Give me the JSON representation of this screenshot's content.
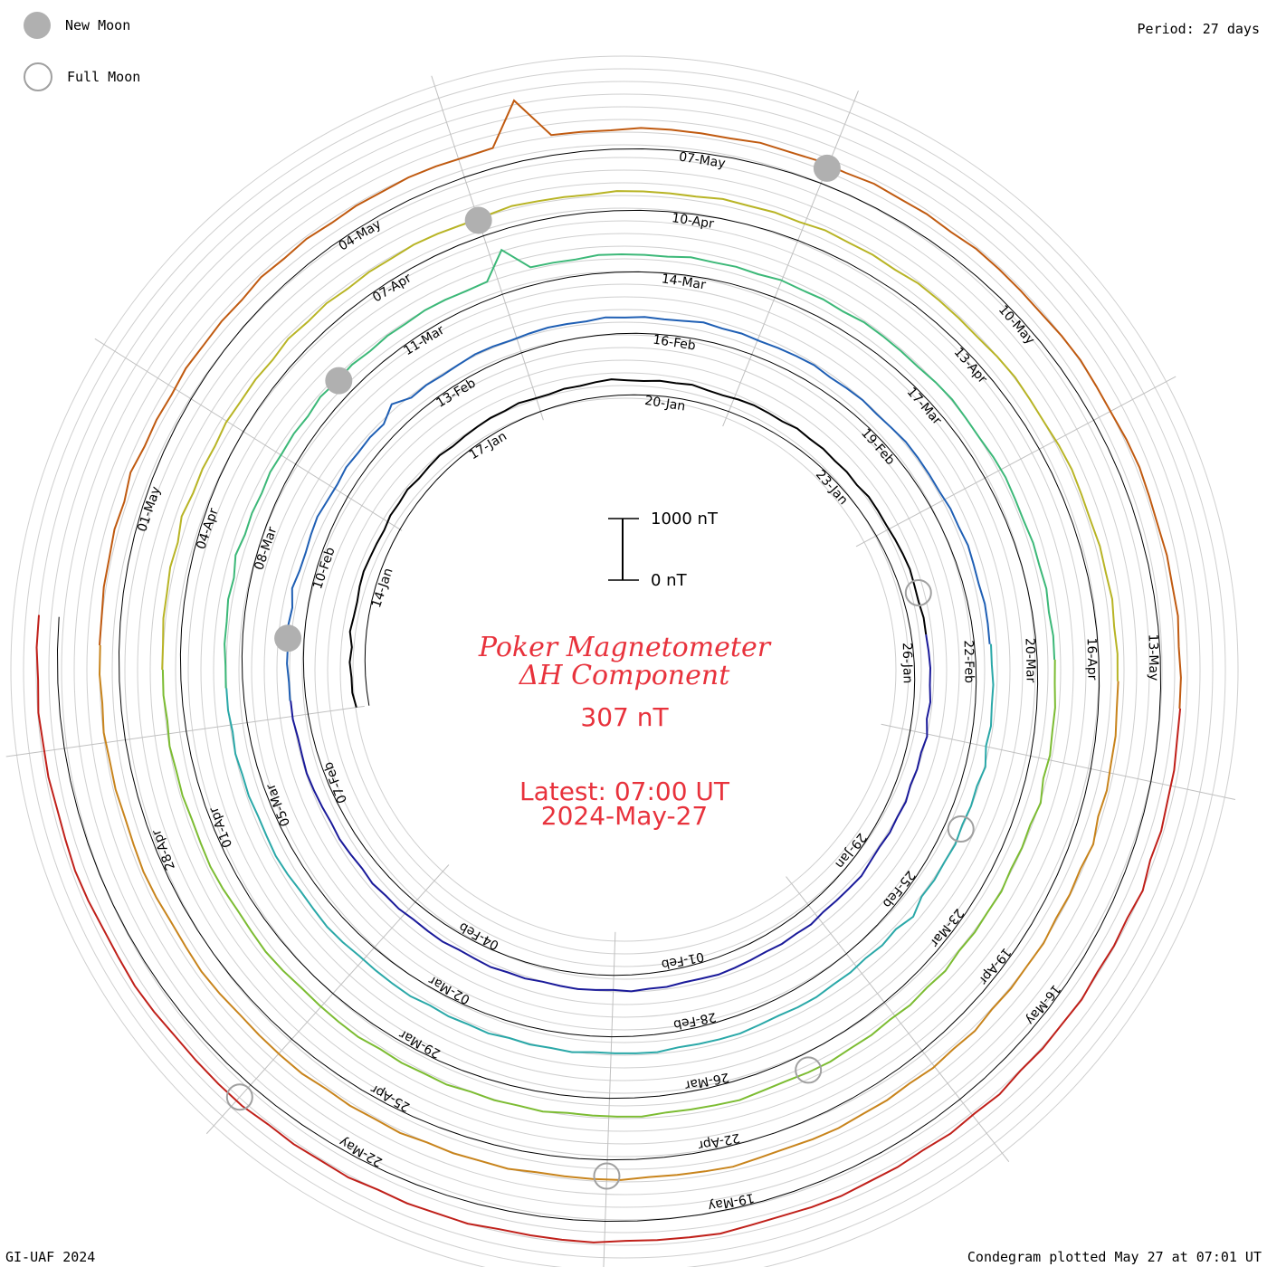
{
  "legend": {
    "new_moon_label": "New Moon",
    "full_moon_label": "Full Moon",
    "new_moon_color": "#b0b0b0",
    "full_moon_color": "#a0a0a0"
  },
  "period_text": "Period: 27 days",
  "credit_text": "GI-UAF 2024",
  "plotted_text": "Condegram plotted May 27 at 07:01 UT",
  "scale": {
    "top_label": "1000 nT",
    "bottom_label": "0 nT"
  },
  "title": {
    "line1": "Poker Magnetometer",
    "line2": "ΔH Component",
    "current_value": "307 nT",
    "latest_line1": "Latest: 07:00 UT",
    "latest_line2": "2024-May-27"
  },
  "accent_color": "#e8323c",
  "chart_data": {
    "type": "line",
    "title": "Poker Magnetometer ΔH Component",
    "current_value_nT": 307,
    "period_days": 27,
    "start_date": "2024-01-12",
    "end_date": "2024-05-27T07:00",
    "direction": "clockwise",
    "scale_bar_nT": [
      0,
      1000
    ],
    "grid": true,
    "series": [
      {
        "color": "#000000",
        "values": [
          120,
          150,
          140,
          160,
          130,
          180,
          150,
          140,
          160,
          170,
          150,
          140,
          130,
          160,
          150,
          170,
          140,
          150,
          160,
          130,
          140,
          150,
          160,
          150,
          170,
          140,
          130,
          150,
          140,
          160,
          180,
          150,
          140,
          160,
          150,
          170,
          140,
          130,
          150,
          160,
          150,
          140,
          170,
          150,
          160,
          140,
          150,
          130,
          160,
          150,
          140,
          150,
          160,
          170,
          150,
          140,
          160,
          150
        ]
      },
      {
        "color": "#1a1a9a",
        "values": [
          150,
          160,
          170,
          160,
          180,
          150,
          200,
          160,
          170,
          150,
          180,
          160,
          170,
          150,
          160,
          190,
          170,
          160,
          150,
          180,
          160,
          170,
          150,
          160,
          170,
          180,
          160,
          150,
          170,
          160,
          180,
          150,
          160,
          170,
          160,
          150,
          170,
          160,
          180,
          160,
          150,
          170,
          160,
          150,
          170,
          160,
          180,
          150,
          160,
          170,
          150,
          160,
          170,
          180,
          160,
          150,
          170,
          160
        ]
      },
      {
        "color": "#1f5fb4",
        "values": [
          170,
          160,
          180,
          170,
          190,
          160,
          220,
          170,
          160,
          180,
          200,
          170,
          160,
          190,
          170,
          180,
          160,
          300,
          170,
          180,
          160,
          170,
          190,
          180,
          160,
          170,
          180,
          170,
          160,
          190,
          170,
          180,
          160,
          170,
          200,
          170,
          180,
          160,
          170,
          180,
          190,
          160,
          170,
          180,
          160,
          170,
          190,
          180,
          170,
          160,
          180,
          170,
          190,
          170,
          160,
          180,
          170,
          160
        ]
      },
      {
        "color": "#2aa8a8",
        "values": [
          180,
          170,
          190,
          180,
          200,
          170,
          230,
          180,
          190,
          170,
          200,
          180,
          190,
          170,
          260,
          180,
          200,
          170,
          190,
          180,
          200,
          190,
          170,
          180,
          200,
          190,
          180,
          170,
          200,
          190,
          180,
          170,
          200,
          180,
          190,
          170,
          200,
          180,
          190,
          170,
          200,
          190,
          180,
          170,
          190,
          200,
          180,
          170,
          190,
          200,
          180,
          170,
          190,
          180,
          200,
          170,
          190,
          180
        ]
      },
      {
        "color": "#3cb878",
        "values": [
          190,
          180,
          200,
          190,
          210,
          180,
          240,
          190,
          200,
          180,
          210,
          190,
          200,
          180,
          220,
          190,
          210,
          180,
          200,
          190,
          210,
          200,
          180,
          190,
          600,
          200,
          190,
          180,
          210,
          200,
          190,
          180,
          210,
          190,
          200,
          180,
          210,
          190,
          200,
          180,
          210,
          200,
          190,
          180,
          200,
          210,
          190,
          180,
          200,
          210,
          190,
          180,
          200,
          190,
          210,
          180,
          200,
          190
        ]
      },
      {
        "color": "#7cbc32",
        "values": [
          200,
          190,
          210,
          200,
          220,
          190,
          250,
          200,
          210,
          190,
          220,
          200,
          210,
          190,
          230,
          200,
          220,
          190,
          210,
          200,
          220,
          210,
          190,
          200,
          230,
          210,
          200,
          190,
          220,
          210,
          200,
          190,
          220,
          200,
          210,
          190,
          220,
          200,
          210,
          190,
          220,
          210,
          200,
          190,
          210,
          220,
          200,
          190,
          210,
          220,
          200,
          190,
          210,
          200,
          220,
          190,
          210,
          200
        ]
      },
      {
        "color": "#b8b425",
        "values": [
          210,
          200,
          220,
          210,
          230,
          200,
          260,
          210,
          220,
          200,
          230,
          210,
          220,
          200,
          240,
          210,
          230,
          200,
          220,
          210,
          230,
          220,
          200,
          210,
          240,
          220,
          210,
          200,
          230,
          220,
          210,
          200,
          230,
          210,
          220,
          200,
          230,
          210,
          220,
          200,
          230,
          220,
          210,
          200,
          220,
          230,
          210,
          200,
          220,
          230,
          210,
          200,
          220,
          210,
          230,
          200,
          220,
          210
        ]
      },
      {
        "color": "#c8841c",
        "values": [
          220,
          210,
          230,
          220,
          240,
          210,
          270,
          220,
          230,
          210,
          240,
          220,
          230,
          210,
          250,
          220,
          240,
          210,
          230,
          220,
          240,
          230,
          210,
          220,
          250,
          230,
          220,
          210,
          240,
          230,
          220,
          210,
          240,
          220,
          230,
          210,
          240,
          220,
          230,
          210,
          240,
          230,
          220,
          210,
          230,
          240,
          220,
          210,
          230,
          240,
          220,
          210,
          230,
          220,
          240,
          210,
          230,
          220
        ]
      },
      {
        "color": "#c05a10",
        "values": [
          230,
          220,
          240,
          230,
          250,
          220,
          280,
          230,
          240,
          220,
          250,
          230,
          240,
          220,
          260,
          230,
          250,
          220,
          240,
          230,
          250,
          240,
          220,
          230,
          900,
          240,
          230,
          220,
          250,
          240,
          230,
          220,
          250,
          230,
          240,
          220,
          250,
          230,
          240,
          220,
          250,
          240,
          230,
          220,
          240,
          250,
          230,
          220,
          240,
          250,
          230,
          220,
          240,
          230,
          250,
          220,
          240,
          230
        ]
      },
      {
        "color": "#c0201a",
        "values": [
          240,
          230,
          250,
          240,
          260,
          230,
          290,
          240,
          250,
          230,
          260,
          240,
          250,
          230,
          270,
          240,
          260,
          230,
          250,
          240,
          260,
          250,
          230,
          240,
          270,
          250,
          240,
          230,
          260,
          250,
          240,
          230,
          260,
          240,
          250,
          230,
          260,
          240,
          250,
          230,
          260,
          250,
          240,
          230,
          250,
          260,
          240,
          230,
          250,
          260,
          240,
          230,
          250,
          240,
          260,
          230,
          250,
          240
        ]
      }
    ],
    "date_labels": [
      {
        "text": "14-Jan",
        "day": 2
      },
      {
        "text": "17-Jan",
        "day": 5
      },
      {
        "text": "20-Jan",
        "day": 8
      },
      {
        "text": "23-Jan",
        "day": 11
      },
      {
        "text": "26-Jan",
        "day": 14
      },
      {
        "text": "29-Jan",
        "day": 17
      },
      {
        "text": "01-Feb",
        "day": 20
      },
      {
        "text": "04-Feb",
        "day": 23
      },
      {
        "text": "07-Feb",
        "day": 26
      },
      {
        "text": "10-Feb",
        "day": 29
      },
      {
        "text": "13-Feb",
        "day": 32
      },
      {
        "text": "16-Feb",
        "day": 35
      },
      {
        "text": "19-Feb",
        "day": 38
      },
      {
        "text": "22-Feb",
        "day": 41
      },
      {
        "text": "25-Feb",
        "day": 44
      },
      {
        "text": "28-Feb",
        "day": 47
      },
      {
        "text": "02-Mar",
        "day": 50
      },
      {
        "text": "05-Mar",
        "day": 53
      },
      {
        "text": "08-Mar",
        "day": 56
      },
      {
        "text": "11-Mar",
        "day": 59
      },
      {
        "text": "14-Mar",
        "day": 62
      },
      {
        "text": "17-Mar",
        "day": 65
      },
      {
        "text": "20-Mar",
        "day": 68
      },
      {
        "text": "23-Mar",
        "day": 71
      },
      {
        "text": "26-Mar",
        "day": 74
      },
      {
        "text": "29-Mar",
        "day": 77
      },
      {
        "text": "01-Apr",
        "day": 80
      },
      {
        "text": "04-Apr",
        "day": 83
      },
      {
        "text": "07-Apr",
        "day": 86
      },
      {
        "text": "10-Apr",
        "day": 89
      },
      {
        "text": "13-Apr",
        "day": 92
      },
      {
        "text": "16-Apr",
        "day": 95
      },
      {
        "text": "19-Apr",
        "day": 98
      },
      {
        "text": "22-Apr",
        "day": 101
      },
      {
        "text": "25-Apr",
        "day": 104
      },
      {
        "text": "28-Apr",
        "day": 107
      },
      {
        "text": "01-May",
        "day": 110
      },
      {
        "text": "04-May",
        "day": 113
      },
      {
        "text": "07-May",
        "day": 116
      },
      {
        "text": "10-May",
        "day": 119
      },
      {
        "text": "13-May",
        "day": 122
      },
      {
        "text": "16-May",
        "day": 125
      },
      {
        "text": "19-May",
        "day": 128
      },
      {
        "text": "22-May",
        "day": 131
      }
    ],
    "new_moons": [
      "2024-02-09",
      "2024-03-10",
      "2024-04-08",
      "2024-05-08"
    ],
    "full_moons": [
      "2024-01-25",
      "2024-02-24",
      "2024-03-25",
      "2024-04-23",
      "2024-05-23"
    ]
  }
}
